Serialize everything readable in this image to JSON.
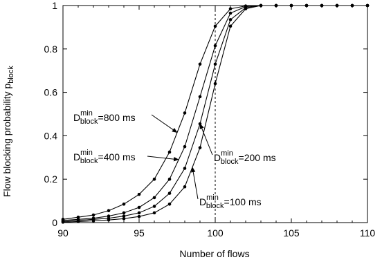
{
  "chart_data": {
    "type": "line",
    "title": "",
    "xlabel": "Number of flows",
    "ylabel": {
      "main": "Flow blocking probability p",
      "sub": "block"
    },
    "xlim": [
      90,
      110
    ],
    "ylim": [
      0,
      1
    ],
    "xticks": [
      90,
      95,
      100,
      105,
      110
    ],
    "yticks": [
      0,
      0.2,
      0.4,
      0.6,
      0.8,
      1
    ],
    "xtick_labels": [
      "90",
      "95",
      "100",
      "105",
      "110"
    ],
    "ytick_labels": [
      "0",
      "0.2",
      "0.4",
      "0.6",
      "0.8",
      "1"
    ],
    "grid": false,
    "reference_line": {
      "x": 100,
      "style": "dashed"
    },
    "x": [
      90,
      91,
      92,
      93,
      94,
      95,
      96,
      97,
      98,
      99,
      100,
      101,
      102,
      103,
      104,
      105,
      106,
      107,
      108,
      109,
      110
    ],
    "series": [
      {
        "values": [
          0.015,
          0.025,
          0.035,
          0.055,
          0.085,
          0.13,
          0.2,
          0.325,
          0.505,
          0.73,
          0.905,
          0.985,
          0.998,
          1,
          1,
          1,
          1,
          1,
          1,
          1,
          1
        ]
      },
      {
        "values": [
          0.01,
          0.015,
          0.02,
          0.03,
          0.045,
          0.07,
          0.115,
          0.2,
          0.35,
          0.58,
          0.815,
          0.965,
          0.995,
          1,
          1,
          1,
          1,
          1,
          1,
          1,
          1
        ]
      },
      {
        "values": [
          0.005,
          0.01,
          0.015,
          0.02,
          0.03,
          0.045,
          0.075,
          0.135,
          0.25,
          0.455,
          0.73,
          0.935,
          0.99,
          1,
          1,
          1,
          1,
          1,
          1,
          1,
          1
        ]
      },
      {
        "values": [
          0.002,
          0.005,
          0.008,
          0.012,
          0.018,
          0.028,
          0.045,
          0.085,
          0.165,
          0.345,
          0.64,
          0.905,
          0.985,
          1,
          1,
          1,
          1,
          1,
          1,
          1,
          1
        ]
      }
    ],
    "annotations": [
      {
        "main": "D",
        "sup": "min",
        "sub": "block",
        "rest": "=800 ms",
        "series": 0
      },
      {
        "main": "D",
        "sup": "min",
        "sub": "block",
        "rest": "=400 ms",
        "series": 1
      },
      {
        "main": "D",
        "sup": "min",
        "sub": "block",
        "rest": "=200 ms",
        "series": 2
      },
      {
        "main": "D",
        "sup": "min",
        "sub": "block",
        "rest": "=100 ms",
        "series": 3
      }
    ]
  }
}
